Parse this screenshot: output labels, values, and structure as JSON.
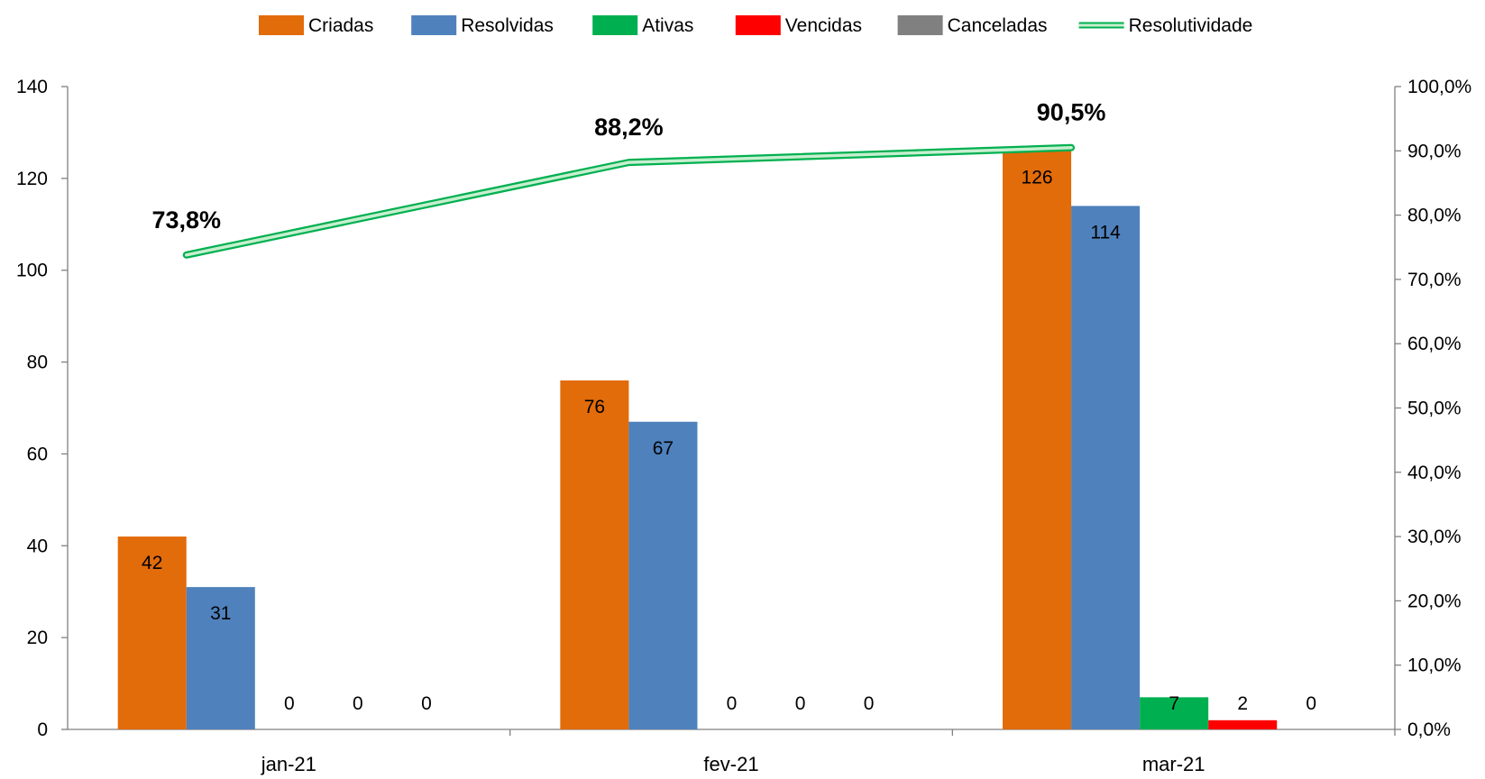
{
  "chart_data": {
    "type": "bar",
    "categories": [
      "jan-21",
      "fev-21",
      "mar-21"
    ],
    "series": [
      {
        "name": "Criadas",
        "color": "#E26B0A",
        "values": [
          42,
          76,
          126
        ]
      },
      {
        "name": "Resolvidas",
        "color": "#4F81BD",
        "values": [
          31,
          67,
          114
        ]
      },
      {
        "name": "Ativas",
        "color": "#00B050",
        "values": [
          0,
          0,
          7
        ]
      },
      {
        "name": "Vencidas",
        "color": "#FF0000",
        "values": [
          0,
          0,
          2
        ]
      },
      {
        "name": "Canceladas",
        "color": "#808080",
        "values": [
          0,
          0,
          0
        ]
      }
    ],
    "line_series": {
      "name": "Resolutividade",
      "type": "line",
      "axis": "secondary",
      "color": "#00B050",
      "values": [
        73.8,
        88.2,
        90.5
      ],
      "labels": [
        "73,8%",
        "88,2%",
        "90,5%"
      ]
    },
    "ylim": [
      0,
      140
    ],
    "y_ticks": [
      0,
      20,
      40,
      60,
      80,
      100,
      120,
      140
    ],
    "y2lim": [
      0,
      100
    ],
    "y2_ticks": [
      0,
      10,
      20,
      30,
      40,
      50,
      60,
      70,
      80,
      90,
      100
    ],
    "y2_tick_labels": [
      "0,0%",
      "10,0%",
      "20,0%",
      "30,0%",
      "40,0%",
      "50,0%",
      "60,0%",
      "70,0%",
      "80,0%",
      "90,0%",
      "100,0%"
    ],
    "legend_position": "top",
    "grid": false,
    "title": "",
    "xlabel": "",
    "ylabel": ""
  }
}
